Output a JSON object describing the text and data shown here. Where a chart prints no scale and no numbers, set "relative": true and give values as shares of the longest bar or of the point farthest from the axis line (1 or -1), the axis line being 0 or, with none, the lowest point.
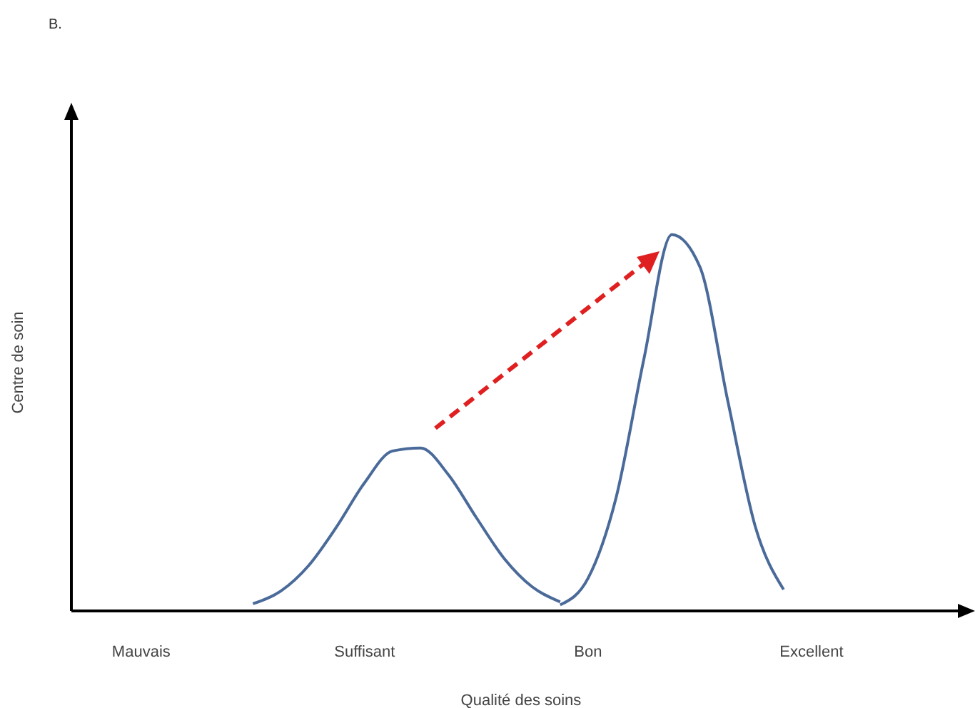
{
  "chart_data": {
    "type": "line",
    "title": "B.",
    "xlabel": "Qualité des soins",
    "ylabel": "Centre de soin",
    "relative": true,
    "marker": "none",
    "legend": false,
    "grid": false,
    "categories": [
      null,
      null,
      "Mauvais",
      null,
      null,
      null,
      null,
      null,
      null,
      null,
      "Suffisant",
      null,
      null,
      null,
      null,
      null,
      null,
      null,
      "Bon",
      null,
      null,
      null,
      null,
      null,
      null,
      null,
      "Excellent",
      null,
      null,
      null,
      null,
      null
    ],
    "series": [
      {
        "color": "#4a6a9a",
        "values": [
          null,
          null,
          null,
          null,
          null,
          null,
          0.019,
          0.053,
          0.121,
          0.224,
          0.341,
          0.425,
          0.433,
          0.362,
          0.248,
          0.139,
          0.064,
          0.024,
          null,
          null,
          null,
          null,
          null,
          null,
          null,
          null,
          null,
          null,
          null,
          null,
          null,
          null
        ]
      },
      {
        "color": "#4a6a9a",
        "values": [
          null,
          null,
          null,
          null,
          null,
          null,
          null,
          null,
          null,
          null,
          null,
          null,
          null,
          null,
          null,
          null,
          null,
          0.016,
          0.087,
          0.3,
          0.67,
          1,
          0.915,
          0.559,
          0.221,
          0.057,
          null,
          null,
          null,
          null,
          null,
          null
        ]
      }
    ]
  }
}
